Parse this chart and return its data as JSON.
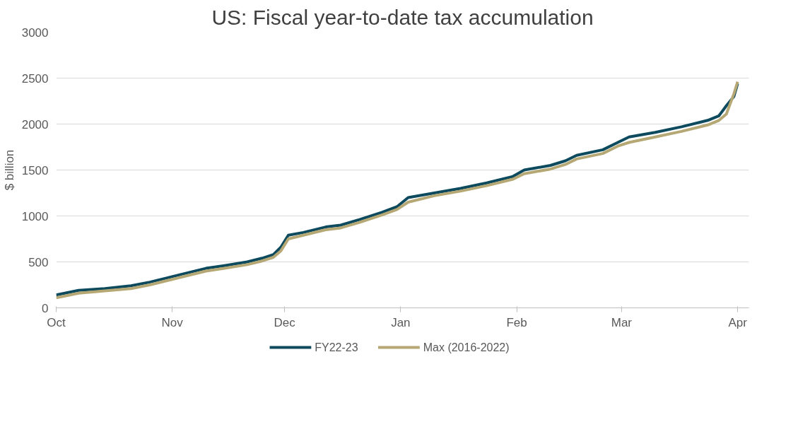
{
  "chart_data": {
    "type": "line",
    "title": "US: Fiscal year-to-date tax accumulation",
    "ylabel": "$ billion",
    "xlim": [
      "2022-10-01",
      "2023-04-04"
    ],
    "xticks": [
      {
        "value": "2022-10-01",
        "label": "Oct"
      },
      {
        "value": "2022-11-01",
        "label": "Nov"
      },
      {
        "value": "2022-12-01",
        "label": "Dec"
      },
      {
        "value": "2023-01-01",
        "label": "Jan"
      },
      {
        "value": "2023-02-01",
        "label": "Feb"
      },
      {
        "value": "2023-03-01",
        "label": "Mar"
      },
      {
        "value": "2023-04-01",
        "label": "Apr"
      }
    ],
    "ylim": [
      0,
      3000
    ],
    "yticks": [
      0,
      500,
      1000,
      1500,
      2000,
      2500,
      3000
    ],
    "grid": "y",
    "legend": "bottom",
    "marker": "none",
    "line_style": "solid",
    "x": [
      "2022-10-01",
      "2022-10-07",
      "2022-10-14",
      "2022-10-21",
      "2022-10-26",
      "2022-10-31",
      "2022-11-04",
      "2022-11-10",
      "2022-11-15",
      "2022-11-21",
      "2022-11-25",
      "2022-11-28",
      "2022-11-30",
      "2022-12-02",
      "2022-12-06",
      "2022-12-12",
      "2022-12-16",
      "2022-12-21",
      "2022-12-27",
      "2022-12-31",
      "2023-01-03",
      "2023-01-10",
      "2023-01-17",
      "2023-01-24",
      "2023-01-31",
      "2023-02-03",
      "2023-02-10",
      "2023-02-14",
      "2023-02-17",
      "2023-02-24",
      "2023-02-28",
      "2023-03-03",
      "2023-03-10",
      "2023-03-17",
      "2023-03-24",
      "2023-03-27",
      "2023-03-29",
      "2023-03-31",
      "2023-04-01"
    ],
    "series": [
      {
        "name": "FY22-23",
        "color": "#0d4a5e",
        "values": [
          140,
          190,
          210,
          240,
          280,
          330,
          370,
          430,
          460,
          500,
          540,
          580,
          660,
          790,
          820,
          880,
          900,
          960,
          1040,
          1100,
          1200,
          1250,
          1300,
          1360,
          1430,
          1500,
          1550,
          1600,
          1660,
          1720,
          1800,
          1860,
          1910,
          1970,
          2040,
          2090,
          2200,
          2300,
          2440
        ]
      },
      {
        "name": "Max (2016-2022)",
        "color": "#b5a874",
        "values": [
          110,
          160,
          185,
          210,
          250,
          300,
          340,
          400,
          430,
          470,
          510,
          550,
          620,
          750,
          790,
          850,
          870,
          930,
          1010,
          1070,
          1150,
          1220,
          1270,
          1330,
          1400,
          1460,
          1510,
          1560,
          1620,
          1680,
          1760,
          1800,
          1860,
          1920,
          1990,
          2040,
          2110,
          2330,
          2460
        ]
      }
    ]
  }
}
